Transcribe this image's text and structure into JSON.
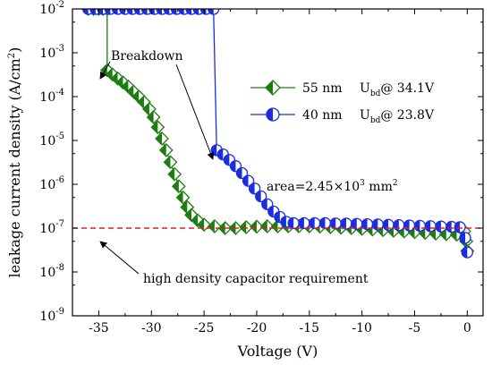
{
  "chart_data": {
    "type": "scatter",
    "xlabel": "Voltage (V)",
    "ylabel": "leakage current density (A/cm",
    "ylabel_sup": "2",
    "ylabel_close": ")",
    "xlim": [
      -37.5,
      1.5
    ],
    "ylim_log10": [
      -9,
      -2
    ],
    "y_scale": "log",
    "x_ticks": [
      -35,
      -30,
      -25,
      -20,
      -15,
      -10,
      -5,
      0
    ],
    "y_ticks_exp": [
      -2,
      -3,
      -4,
      -5,
      -6,
      -7,
      -8,
      -9
    ],
    "y_tick_base": "10",
    "grid": false,
    "legend_position": "upper-right",
    "reference_line": {
      "y": 1e-07,
      "color": "#e02020",
      "style": "dashed"
    },
    "series": [
      {
        "name": "55 nm",
        "legend_label": "55 nm",
        "legend_extra": "U",
        "legend_sub": "bd",
        "legend_value": "@ 34.1V",
        "color": "#1e7d12",
        "marker": "half-diamond",
        "points": [
          [
            -36,
            0.01
          ],
          [
            -35.5,
            0.01
          ],
          [
            -35,
            0.01
          ],
          [
            -34.6,
            0.01
          ],
          [
            -34.2,
            0.01
          ],
          [
            -34.2,
            0.0004
          ],
          [
            -33.7,
            0.00032
          ],
          [
            -33.2,
            0.00026
          ],
          [
            -32.7,
            0.00021
          ],
          [
            -32.2,
            0.00017
          ],
          [
            -31.7,
            0.00013
          ],
          [
            -31.2,
            0.0001
          ],
          [
            -30.7,
            7.5e-05
          ],
          [
            -30.2,
            5.2e-05
          ],
          [
            -29.8,
            3.4e-05
          ],
          [
            -29.4,
            2e-05
          ],
          [
            -29.0,
            1.1e-05
          ],
          [
            -28.6,
            6e-06
          ],
          [
            -28.2,
            3.2e-06
          ],
          [
            -27.8,
            1.7e-06
          ],
          [
            -27.4,
            9e-07
          ],
          [
            -27.0,
            5e-07
          ],
          [
            -26.6,
            3e-07
          ],
          [
            -26.2,
            2e-07
          ],
          [
            -25.6,
            1.5e-07
          ],
          [
            -25.0,
            1.2e-07
          ],
          [
            -24.0,
            1.1e-07
          ],
          [
            -23.0,
            1e-07
          ],
          [
            -22.0,
            1e-07
          ],
          [
            -21.0,
            1.05e-07
          ],
          [
            -20.0,
            1.08e-07
          ],
          [
            -19.0,
            1.1e-07
          ],
          [
            -18.0,
            1.1e-07
          ],
          [
            -17.0,
            1.1e-07
          ],
          [
            -16.0,
            1.1e-07
          ],
          [
            -15.0,
            1.1e-07
          ],
          [
            -14.0,
            1.08e-07
          ],
          [
            -13.0,
            1.05e-07
          ],
          [
            -12.0,
            1.02e-07
          ],
          [
            -11.0,
            1e-07
          ],
          [
            -10.0,
            9.6e-08
          ],
          [
            -9.0,
            9.3e-08
          ],
          [
            -8.0,
            9e-08
          ],
          [
            -7.0,
            8.7e-08
          ],
          [
            -6.0,
            8.4e-08
          ],
          [
            -5.0,
            8.1e-08
          ],
          [
            -4.0,
            7.8e-08
          ],
          [
            -3.0,
            7.5e-08
          ],
          [
            -2.0,
            7.3e-08
          ],
          [
            -1.0,
            7.1e-08
          ],
          [
            -0.3,
            8.5e-08
          ],
          [
            -0.1,
            5e-08
          ],
          [
            0.0,
            3e-08
          ]
        ]
      },
      {
        "name": "40 nm",
        "legend_label": "40 nm",
        "legend_extra": "U",
        "legend_sub": "bd",
        "legend_value": "@ 23.8V",
        "color": "#1a2ee0",
        "marker": "half-circle",
        "points": [
          [
            -36,
            0.01
          ],
          [
            -35.3,
            0.01
          ],
          [
            -34.6,
            0.01
          ],
          [
            -33.9,
            0.01
          ],
          [
            -33.2,
            0.01
          ],
          [
            -32.5,
            0.01
          ],
          [
            -31.8,
            0.01
          ],
          [
            -31.1,
            0.01
          ],
          [
            -30.4,
            0.01
          ],
          [
            -29.7,
            0.01
          ],
          [
            -29.0,
            0.01
          ],
          [
            -28.3,
            0.01
          ],
          [
            -27.6,
            0.01
          ],
          [
            -26.9,
            0.01
          ],
          [
            -26.2,
            0.01
          ],
          [
            -25.5,
            0.01
          ],
          [
            -24.8,
            0.01
          ],
          [
            -24.1,
            0.01
          ],
          [
            -23.8,
            6e-06
          ],
          [
            -23.2,
            4.8e-06
          ],
          [
            -22.6,
            3.6e-06
          ],
          [
            -22.0,
            2.6e-06
          ],
          [
            -21.4,
            1.8e-06
          ],
          [
            -20.8,
            1.2e-06
          ],
          [
            -20.2,
            8e-07
          ],
          [
            -19.6,
            5.3e-07
          ],
          [
            -19.0,
            3.5e-07
          ],
          [
            -18.4,
            2.4e-07
          ],
          [
            -17.8,
            1.8e-07
          ],
          [
            -17.2,
            1.4e-07
          ],
          [
            -16.5,
            1.3e-07
          ],
          [
            -15.5,
            1.3e-07
          ],
          [
            -14.5,
            1.3e-07
          ],
          [
            -13.5,
            1.3e-07
          ],
          [
            -12.5,
            1.28e-07
          ],
          [
            -11.5,
            1.27e-07
          ],
          [
            -10.5,
            1.25e-07
          ],
          [
            -9.5,
            1.23e-07
          ],
          [
            -8.5,
            1.21e-07
          ],
          [
            -7.5,
            1.19e-07
          ],
          [
            -6.5,
            1.17e-07
          ],
          [
            -5.5,
            1.15e-07
          ],
          [
            -4.5,
            1.13e-07
          ],
          [
            -3.5,
            1.11e-07
          ],
          [
            -2.5,
            1.09e-07
          ],
          [
            -1.5,
            1.07e-07
          ],
          [
            -0.7,
            1.05e-07
          ],
          [
            -0.2,
            6e-08
          ],
          [
            0.0,
            2.8e-08
          ]
        ]
      }
    ],
    "annotations": {
      "breakdown": "Breakdown",
      "area_prefix": "area=2.45×10",
      "area_exp": "3",
      "area_unit": " mm",
      "area_unit_exp": "2",
      "requirement": "high density capacitor requirement"
    }
  }
}
